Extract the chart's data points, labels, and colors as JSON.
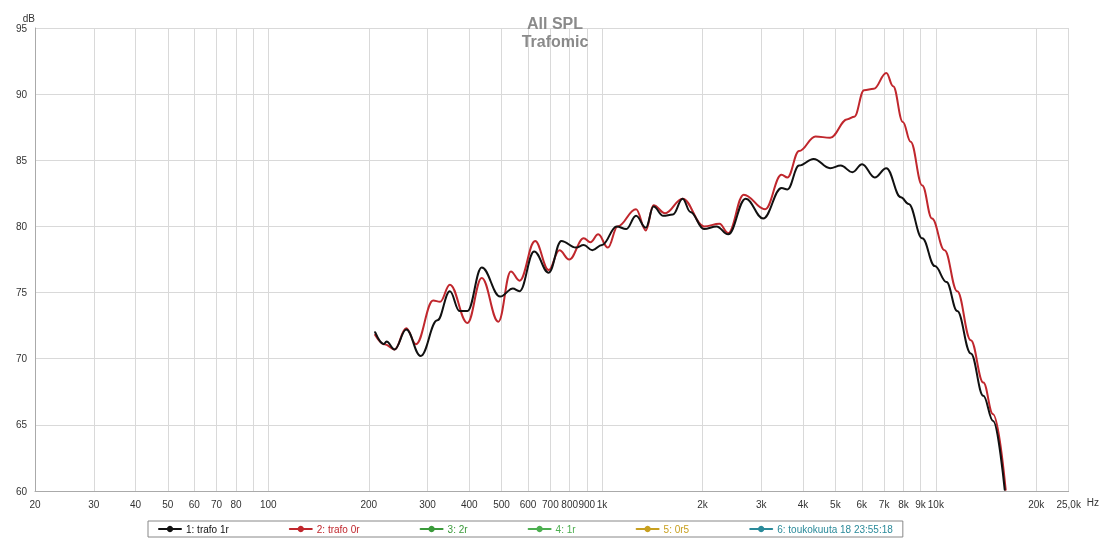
{
  "chart_data": {
    "type": "line",
    "title": "All SPL",
    "subtitle": "Trafomic",
    "xlabel": "Hz",
    "ylabel": "dB",
    "log": "x",
    "grid": true,
    "legend": "bottom",
    "marker": "none",
    "line_style": "solid",
    "xlim": [
      20,
      25000
    ],
    "ylim": [
      60,
      95
    ],
    "xticks": [
      20,
      30,
      40,
      50,
      60,
      70,
      80,
      {
        "value": 90,
        "label": null
      },
      100,
      200,
      300,
      400,
      500,
      600,
      700,
      800,
      900,
      {
        "value": 1000,
        "label": "1k"
      },
      {
        "value": 2000,
        "label": "2k"
      },
      {
        "value": 3000,
        "label": "3k"
      },
      {
        "value": 4000,
        "label": "4k"
      },
      {
        "value": 5000,
        "label": "5k"
      },
      {
        "value": 6000,
        "label": "6k"
      },
      {
        "value": 7000,
        "label": "7k"
      },
      {
        "value": 8000,
        "label": "8k"
      },
      {
        "value": 9000,
        "label": "9k"
      },
      {
        "value": 10000,
        "label": "10k"
      },
      {
        "value": 20000,
        "label": "20k"
      },
      {
        "value": 25000,
        "label": "25,0k"
      }
    ],
    "yticks": [
      60,
      65,
      70,
      75,
      80,
      85,
      90,
      95
    ],
    "series": [
      {
        "name": "1: trafo 1r",
        "color": "#111111",
        "x": [
          209,
          222,
          226,
          239,
          259,
          286,
          321,
          350,
          374,
          395,
          436,
          495,
          540,
          566,
          626,
          692,
          755,
          835,
          881,
          935,
          1000,
          1106,
          1182,
          1264,
          1352,
          1426,
          1525,
          1630,
          1743,
          1839,
          2020,
          2203,
          2387,
          2693,
          3038,
          3450,
          3592,
          3892,
          4303,
          4822,
          5190,
          5623,
          6013,
          6560,
          7107,
          7858,
          8291,
          9106,
          9933,
          10764,
          11588,
          12726,
          13878,
          14840,
          16083
        ],
        "values": [
          72.0,
          71.1,
          71.3,
          70.7,
          72.2,
          70.2,
          72.9,
          75.1,
          73.6,
          73.6,
          76.9,
          74.7,
          75.3,
          75.1,
          78.1,
          76.5,
          78.9,
          78.4,
          78.6,
          78.2,
          78.6,
          80.0,
          79.8,
          80.8,
          79.9,
          81.5,
          80.8,
          80.9,
          82.1,
          81.1,
          79.8,
          80.0,
          79.4,
          82.1,
          80.6,
          82.9,
          82.8,
          84.6,
          85.1,
          84.4,
          84.6,
          84.1,
          84.7,
          83.7,
          84.4,
          82.2,
          81.7,
          79.1,
          77.0,
          75.8,
          73.6,
          70.4,
          67.2,
          65.3,
          60.1
        ]
      },
      {
        "name": "2: trafo 0r",
        "color": "#c0272d",
        "x": [
          209,
          223,
          239,
          259,
          277,
          312,
          327,
          350,
          395,
          436,
          489,
          533,
          566,
          630,
          692,
          745,
          797,
          881,
          923,
          974,
          1041,
          1113,
          1264,
          1352,
          1426,
          1545,
          1743,
          2020,
          2248,
          2387,
          2657,
          3079,
          3450,
          3592,
          3892,
          4361,
          4822,
          5438,
          5700,
          6094,
          6516,
          7107,
          7449,
          7965,
          8402,
          9106,
          9737,
          10621,
          11588,
          12726,
          13878,
          14840,
          16191
        ],
        "values": [
          71.8,
          71.1,
          70.7,
          72.3,
          71.1,
          74.4,
          74.3,
          75.6,
          72.7,
          76.1,
          72.8,
          76.6,
          75.9,
          78.9,
          76.7,
          78.2,
          77.5,
          79.1,
          78.8,
          79.4,
          78.4,
          80.0,
          81.3,
          79.7,
          81.6,
          81.0,
          82.1,
          80.0,
          80.2,
          79.5,
          82.4,
          81.3,
          83.9,
          83.7,
          85.7,
          86.8,
          86.7,
          88.1,
          88.3,
          90.3,
          90.4,
          91.6,
          90.6,
          87.9,
          86.4,
          83.1,
          80.6,
          78.2,
          75.1,
          71.4,
          68.2,
          65.8,
          60.1
        ]
      },
      {
        "name": "3: 2r",
        "color": "#3a9a3a"
      },
      {
        "name": "4: 1r",
        "color": "#4caf50"
      },
      {
        "name": "5: 0r5",
        "color": "#c8a020"
      },
      {
        "name": "6: toukokuuta 18 23:55:18",
        "color": "#2a8a9a"
      }
    ]
  }
}
